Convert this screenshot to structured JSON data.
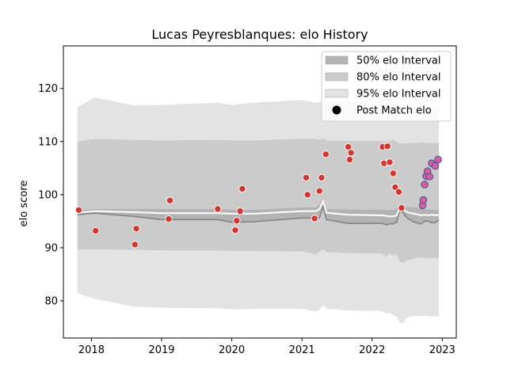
{
  "chart_data": {
    "type": "scatter",
    "title": "Lucas Peyresblanques: elo History",
    "xlabel": "",
    "ylabel": "elo score",
    "xlim": [
      2017.6,
      2023.2
    ],
    "ylim": [
      73,
      128
    ],
    "x_ticks": [
      2018,
      2019,
      2020,
      2021,
      2022,
      2023
    ],
    "x_tick_labels": [
      "2018",
      "2019",
      "2020",
      "2021",
      "2022",
      "2023"
    ],
    "y_ticks": [
      80,
      90,
      100,
      110,
      120
    ],
    "y_tick_labels": [
      "80",
      "90",
      "100",
      "110",
      "120"
    ],
    "grid": false,
    "legend": {
      "position": "top-right",
      "entries": [
        "50% elo Interval",
        "80% elo Interval",
        "95% elo Interval",
        "Post Match elo"
      ]
    },
    "colors": {
      "band95": "#e3e3e3",
      "band80": "#cbcbcb",
      "band50": "#b3b3b3",
      "median_line": "#ffffff",
      "lower_line": "#808080",
      "point_fill": "#d9342b",
      "point_fill_recent": "#e05c9a",
      "point_edge": "#ffffff",
      "point_edge_recent": "#4a5aa0"
    },
    "bands": {
      "x": [
        2017.8,
        2018.05,
        2018.6,
        2019.0,
        2019.8,
        2020.0,
        2020.3,
        2021.0,
        2021.2,
        2021.25,
        2021.3,
        2021.35,
        2021.65,
        2022.15,
        2022.2,
        2022.25,
        2022.3,
        2022.35,
        2022.4,
        2022.45,
        2022.5,
        2022.6,
        2022.7,
        2022.75,
        2022.8,
        2022.85,
        2022.9,
        2022.95
      ],
      "mean": [
        96.6,
        96.9,
        96.7,
        96.5,
        96.5,
        96.4,
        96.4,
        96.9,
        96.9,
        97.3,
        98.8,
        96.6,
        96.2,
        96.1,
        96.0,
        95.9,
        95.9,
        96.1,
        97.6,
        97.2,
        96.7,
        96.4,
        96.1,
        96.2,
        96.1,
        96.2,
        96.1,
        96.2
      ],
      "p50_low": [
        96.2,
        96.5,
        95.9,
        95.3,
        95.3,
        94.8,
        94.9,
        95.6,
        95.6,
        95.6,
        97.7,
        95.3,
        94.6,
        94.6,
        94.3,
        94.5,
        94.5,
        94.8,
        97.2,
        96.4,
        95.6,
        94.8,
        94.5,
        95.0,
        95.0,
        94.7,
        94.7,
        95.3
      ],
      "p50_high": [
        97.0,
        97.3,
        97.3,
        97.3,
        97.3,
        97.2,
        97.1,
        97.6,
        97.6,
        98.2,
        99.5,
        97.3,
        97.2,
        97.1,
        97.1,
        97.1,
        97.1,
        97.4,
        98.0,
        97.8,
        97.7,
        97.6,
        97.4,
        97.3,
        97.2,
        97.1,
        97.1,
        97.1
      ],
      "p80_low": [
        89.7,
        89.7,
        89.6,
        89.5,
        89.5,
        89.4,
        89.4,
        89.3,
        88.8,
        89.2,
        89.7,
        89.2,
        89.0,
        88.9,
        88.3,
        88.9,
        88.5,
        88.7,
        87.3,
        87.2,
        87.6,
        88.0,
        88.2,
        88.0,
        88.1,
        88.0,
        88.0,
        88.0
      ],
      "p80_high": [
        110.0,
        110.5,
        110.3,
        110.2,
        110.3,
        110.2,
        110.2,
        110.5,
        110.5,
        110.3,
        110.7,
        110.2,
        110.1,
        110.1,
        110.0,
        110.1,
        110.4,
        109.9,
        109.6,
        109.6,
        109.7,
        109.7,
        109.8,
        109.8,
        109.7,
        109.7,
        109.7,
        109.8
      ],
      "p95_low": [
        81.4,
        80.4,
        78.9,
        78.7,
        78.6,
        78.4,
        78.5,
        78.5,
        78.0,
        78.3,
        79.2,
        78.5,
        78.2,
        78.1,
        77.6,
        77.8,
        77.3,
        77.1,
        75.8,
        75.9,
        76.9,
        77.2,
        77.1,
        77.2,
        77.1,
        77.1,
        77.1,
        77.1
      ],
      "p95_high": [
        116.5,
        118.3,
        116.8,
        116.9,
        117.3,
        116.9,
        117.3,
        117.8,
        117.3,
        117.5,
        117.0,
        117.1,
        117.6,
        117.1,
        117.0,
        117.3,
        116.8,
        116.9,
        116.5,
        116.5,
        116.6,
        116.6,
        116.7,
        116.7,
        116.7,
        116.7,
        116.7,
        116.7
      ]
    },
    "points": [
      {
        "x": 2017.82,
        "y": 97.1
      },
      {
        "x": 2018.06,
        "y": 93.2
      },
      {
        "x": 2018.62,
        "y": 90.6
      },
      {
        "x": 2018.64,
        "y": 93.6
      },
      {
        "x": 2019.1,
        "y": 95.4
      },
      {
        "x": 2019.12,
        "y": 98.9
      },
      {
        "x": 2019.8,
        "y": 97.3
      },
      {
        "x": 2020.05,
        "y": 93.3
      },
      {
        "x": 2020.07,
        "y": 95.1
      },
      {
        "x": 2020.12,
        "y": 96.9
      },
      {
        "x": 2020.15,
        "y": 101.1
      },
      {
        "x": 2021.06,
        "y": 103.2
      },
      {
        "x": 2021.08,
        "y": 100.0
      },
      {
        "x": 2021.18,
        "y": 95.5
      },
      {
        "x": 2021.25,
        "y": 100.7
      },
      {
        "x": 2021.28,
        "y": 103.2
      },
      {
        "x": 2021.34,
        "y": 107.6
      },
      {
        "x": 2021.66,
        "y": 109.0
      },
      {
        "x": 2021.68,
        "y": 106.6
      },
      {
        "x": 2021.7,
        "y": 107.9
      },
      {
        "x": 2022.15,
        "y": 109.0
      },
      {
        "x": 2022.17,
        "y": 105.9
      },
      {
        "x": 2022.22,
        "y": 109.1
      },
      {
        "x": 2022.25,
        "y": 106.1
      },
      {
        "x": 2022.3,
        "y": 104.0
      },
      {
        "x": 2022.33,
        "y": 101.4
      },
      {
        "x": 2022.38,
        "y": 100.5
      },
      {
        "x": 2022.42,
        "y": 97.5
      },
      {
        "x": 2022.72,
        "y": 98.0
      },
      {
        "x": 2022.73,
        "y": 99.0
      },
      {
        "x": 2022.75,
        "y": 101.9
      },
      {
        "x": 2022.77,
        "y": 103.5
      },
      {
        "x": 2022.79,
        "y": 104.4
      },
      {
        "x": 2022.82,
        "y": 103.4
      },
      {
        "x": 2022.85,
        "y": 105.9
      },
      {
        "x": 2022.9,
        "y": 105.4
      },
      {
        "x": 2022.94,
        "y": 106.6
      }
    ],
    "recent_from_x": 2022.7
  }
}
